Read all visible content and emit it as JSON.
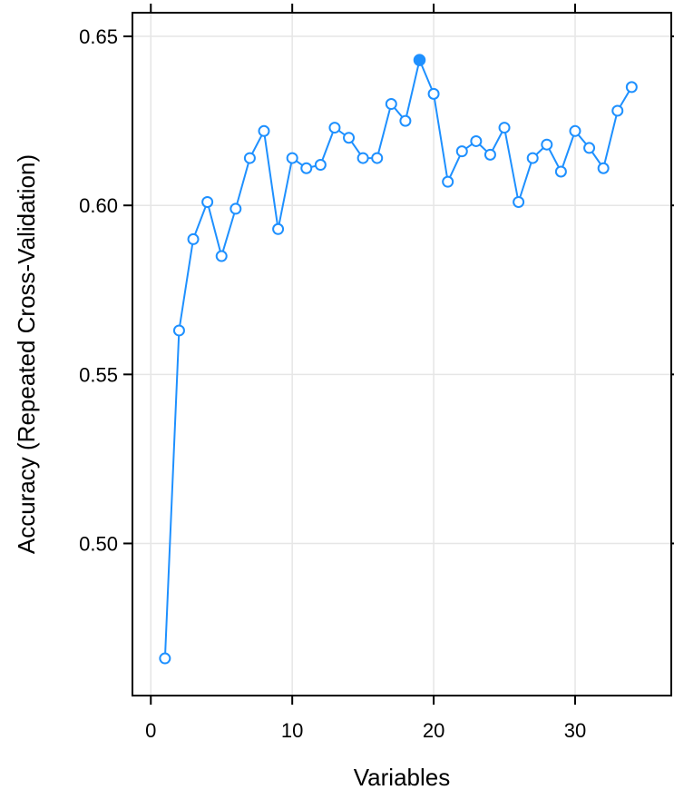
{
  "chart_data": {
    "type": "line",
    "xlabel": "Variables",
    "ylabel": "Accuracy (Repeated Cross-Validation)",
    "xlim": [
      -1.3,
      36.8
    ],
    "ylim": [
      0.455,
      0.657
    ],
    "x_ticks": [
      0,
      10,
      20,
      30
    ],
    "x_tick_labels": [
      "0",
      "10",
      "20",
      "30"
    ],
    "y_ticks": [
      0.5,
      0.55,
      0.6,
      0.65
    ],
    "y_tick_labels": [
      "0.50",
      "0.55",
      "0.60",
      "0.65"
    ],
    "grid": true,
    "series": [
      {
        "color": "#1e90ff",
        "marker": "open-circle",
        "x": [
          1,
          2,
          3,
          4,
          5,
          6,
          7,
          8,
          9,
          10,
          11,
          12,
          13,
          14,
          15,
          16,
          17,
          18,
          19,
          20,
          21,
          22,
          23,
          24,
          25,
          26,
          27,
          28,
          29,
          30,
          31,
          32,
          33,
          34
        ],
        "values": [
          0.466,
          0.563,
          0.59,
          0.601,
          0.585,
          0.599,
          0.614,
          0.622,
          0.593,
          0.614,
          0.611,
          0.612,
          0.623,
          0.62,
          0.614,
          0.614,
          0.63,
          0.625,
          0.643,
          0.633,
          0.607,
          0.616,
          0.619,
          0.615,
          0.623,
          0.601,
          0.614,
          0.618,
          0.61,
          0.622,
          0.617,
          0.611,
          0.628,
          0.635
        ]
      }
    ],
    "highlight": {
      "x": 19,
      "value": 0.643,
      "marker": "filled-circle"
    }
  }
}
